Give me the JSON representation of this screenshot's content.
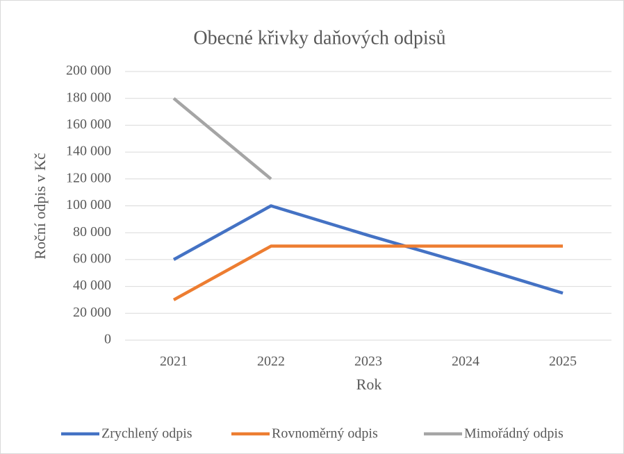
{
  "chart_data": {
    "type": "line",
    "title": "Obecné křivky daňových odpisů",
    "x_label": "Rok",
    "y_label": "Roční odpis v Kč",
    "categories": [
      "2021",
      "2022",
      "2023",
      "2024",
      "2025"
    ],
    "series": [
      {
        "name": "Zrychlený odpis",
        "color": "#4472c4",
        "values": [
          60000,
          100000,
          78000,
          57000,
          35000
        ]
      },
      {
        "name": "Rovnoměrný odpis",
        "color": "#ed7d31",
        "values": [
          30000,
          70000,
          70000,
          70000,
          70000
        ]
      },
      {
        "name": "Mimořádný odpis",
        "color": "#a5a5a5",
        "values": [
          180000,
          120000,
          null,
          null,
          null
        ]
      }
    ],
    "ylim": [
      0,
      200000
    ],
    "yticks": [
      0,
      {
        "value": 20000,
        "label": "20 000"
      },
      {
        "value": 40000,
        "label": "40 000"
      },
      {
        "value": 60000,
        "label": "60 000"
      },
      {
        "value": 80000,
        "label": "80 000"
      },
      {
        "value": 100000,
        "label": "100 000"
      },
      {
        "value": 120000,
        "label": "120 000"
      },
      {
        "value": 140000,
        "label": "140 000"
      },
      {
        "value": 160000,
        "label": "160 000"
      },
      {
        "value": 180000,
        "label": "180 000"
      },
      {
        "value": 200000,
        "label": "200 000"
      }
    ],
    "grid": true,
    "legend": "bottom"
  }
}
